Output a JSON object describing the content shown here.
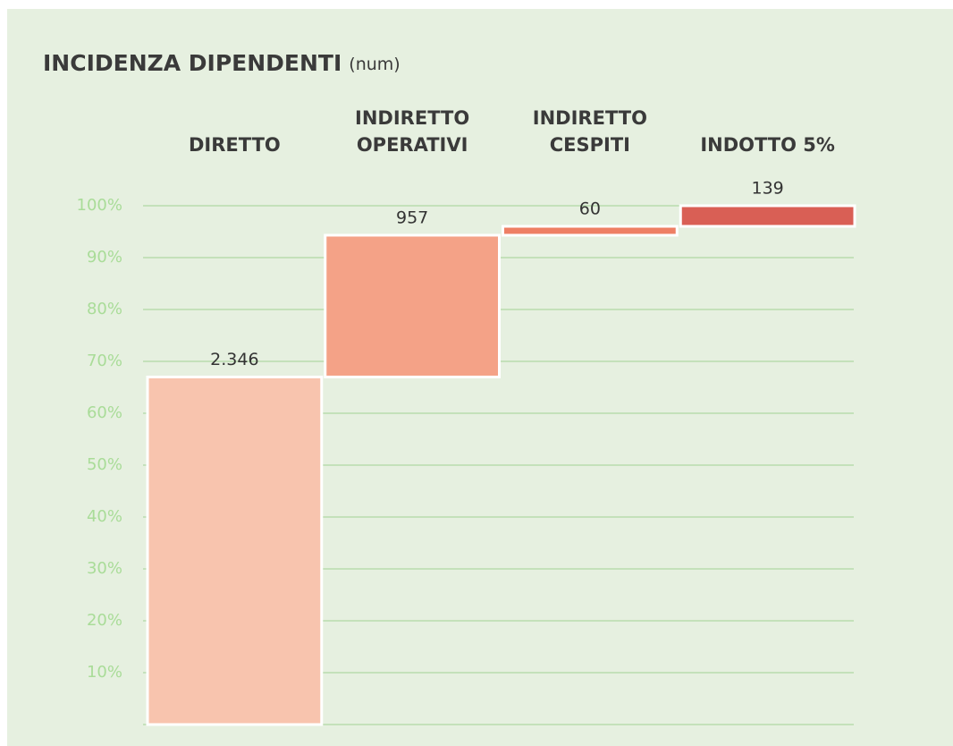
{
  "chart_data": {
    "type": "waterfall",
    "title": "INCIDENZA DIPENDENTI",
    "subtitle": "(num)",
    "categories": [
      [
        "DIRETTO"
      ],
      [
        "INDIRETTO",
        "OPERATIVI"
      ],
      [
        "INDIRETTO",
        "CESPITI"
      ],
      [
        "INDOTTO 5%"
      ]
    ],
    "values": [
      2346,
      957,
      60,
      139
    ],
    "value_labels": [
      "2.346",
      "957",
      "60",
      "139"
    ],
    "colors": [
      "#f8c4ae",
      "#f4a287",
      "#ee7f64",
      "#d95f55"
    ],
    "percent_of_total": true,
    "ylim": [
      0,
      100
    ],
    "yticks": [
      {
        "value": 10,
        "label": "10%"
      },
      {
        "value": 20,
        "label": "20%"
      },
      {
        "value": 30,
        "label": "30%"
      },
      {
        "value": 40,
        "label": "40%"
      },
      {
        "value": 50,
        "label": "50%"
      },
      {
        "value": 60,
        "label": "60%"
      },
      {
        "value": 70,
        "label": "70%"
      },
      {
        "value": 80,
        "label": "80%"
      },
      {
        "value": 90,
        "label": "90%"
      },
      {
        "value": 100,
        "label": "100%"
      }
    ],
    "grid": true
  }
}
